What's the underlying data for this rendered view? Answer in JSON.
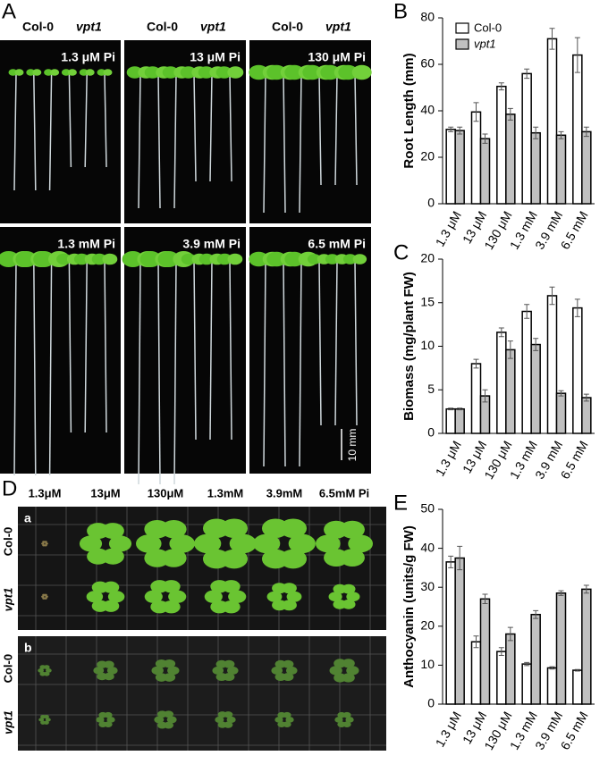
{
  "photo_panels": {
    "A": {
      "letter": "A",
      "genotypes": [
        "Col-0",
        "vpt1"
      ],
      "conditions": [
        "1.3 μM Pi",
        "13 μM Pi",
        "130 μM Pi",
        "1.3 mM Pi",
        "3.9 mM Pi",
        "6.5 mM Pi"
      ],
      "scale_bar": "10 mm"
    },
    "D": {
      "letter": "D",
      "conditions": [
        "1.3μM",
        "13μM",
        "130μM",
        "1.3mM",
        "3.9mM",
        "6.5mM Pi"
      ],
      "genotypes": [
        "Col-0",
        "vpt1"
      ],
      "subpanels": [
        "a",
        "b"
      ]
    }
  },
  "chart_data": [
    {
      "type": "bar",
      "panel": "B",
      "y_label": "Root Length (mm)",
      "categories": [
        "1.3 μM",
        "13 μM",
        "130 μM",
        "1.3 mM",
        "3.9 mM",
        "6.5 mM"
      ],
      "ylim": [
        0,
        80
      ],
      "yticks": [
        0,
        20,
        40,
        60,
        80
      ],
      "legend": "top-left",
      "series": [
        {
          "name": "Col-0",
          "color": "#ffffff",
          "values": [
            32,
            39.5,
            50.5,
            56,
            71,
            64
          ],
          "errors": [
            1,
            4,
            1.5,
            2,
            4.5,
            7.5
          ]
        },
        {
          "name": "vpt1",
          "color": "#c0c0c0",
          "values": [
            31.5,
            28,
            38.5,
            30.5,
            29.5,
            31
          ],
          "errors": [
            1.5,
            2,
            2.5,
            2.5,
            1.5,
            2
          ]
        }
      ]
    },
    {
      "type": "bar",
      "panel": "C",
      "y_label": "Biomass (mg/plant FW)",
      "categories": [
        "1.3 μM",
        "13 μM",
        "130 μM",
        "1.3 mM",
        "3.9 mM",
        "6.5 mM"
      ],
      "ylim": [
        0,
        20
      ],
      "yticks": [
        0,
        5,
        10,
        15,
        20
      ],
      "series": [
        {
          "color": "#ffffff",
          "values": [
            2.8,
            8.0,
            11.6,
            14.0,
            15.8,
            14.4
          ],
          "errors": [
            0.1,
            0.5,
            0.5,
            0.8,
            1.0,
            1.0
          ]
        },
        {
          "color": "#c0c0c0",
          "values": [
            2.8,
            4.3,
            9.6,
            10.2,
            4.6,
            4.1
          ],
          "errors": [
            0.1,
            0.7,
            1.0,
            0.7,
            0.3,
            0.4
          ]
        }
      ]
    },
    {
      "type": "bar",
      "panel": "E",
      "y_label": "Anthocyanin (units/g FW)",
      "categories": [
        "1.3 μM",
        "13 μM",
        "130 μM",
        "1.3 mM",
        "3.9 mM",
        "6.5 mM"
      ],
      "ylim": [
        0,
        50
      ],
      "yticks": [
        0,
        10,
        20,
        30,
        40,
        50
      ],
      "series": [
        {
          "color": "#ffffff",
          "values": [
            36.5,
            16,
            13.5,
            10.3,
            9.3,
            8.7
          ],
          "errors": [
            1.5,
            1.5,
            1,
            0.4,
            0.3,
            0.2
          ]
        },
        {
          "color": "#c0c0c0",
          "values": [
            37.5,
            27,
            18,
            23,
            28.5,
            29.5
          ],
          "errors": [
            3,
            1.2,
            1.7,
            1,
            0.6,
            1
          ]
        }
      ]
    }
  ]
}
